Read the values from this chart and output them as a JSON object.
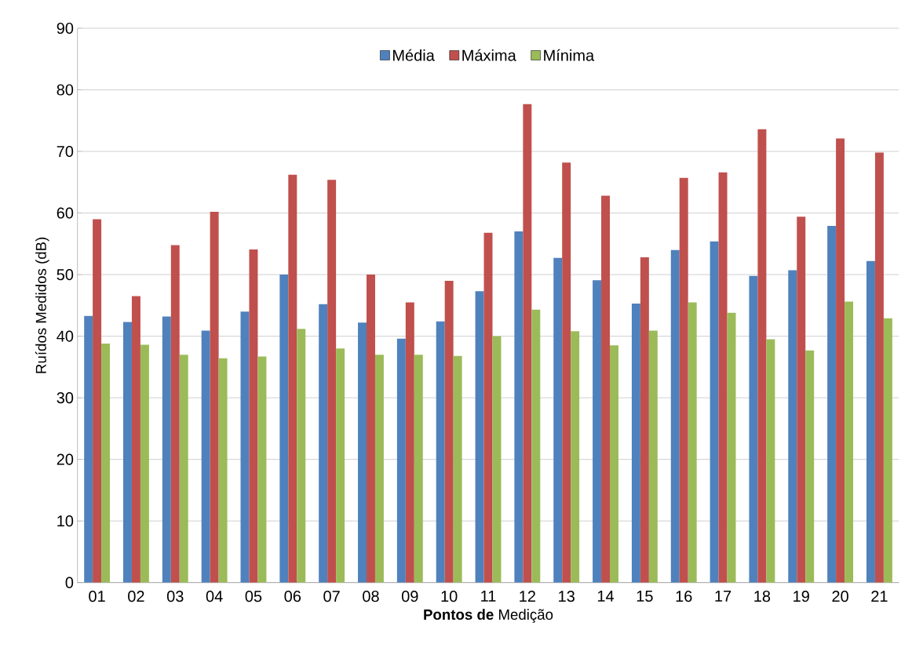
{
  "chart_data": {
    "type": "bar",
    "xlabel": "**Pontos de** Medição",
    "ylabel": "Ruídos Medidos (dB)",
    "categories": [
      "01",
      "02",
      "03",
      "04",
      "05",
      "06",
      "07",
      "08",
      "09",
      "10",
      "11",
      "12",
      "13",
      "14",
      "15",
      "16",
      "17",
      "18",
      "19",
      "20",
      "21"
    ],
    "series": [
      {
        "name": "Média",
        "color": "#4f81bd",
        "values": [
          43.3,
          42.3,
          43.2,
          40.9,
          44.0,
          50.0,
          45.2,
          42.2,
          39.6,
          42.4,
          47.3,
          57.0,
          52.7,
          49.1,
          45.3,
          54.0,
          55.4,
          49.8,
          50.7,
          57.9,
          52.2
        ]
      },
      {
        "name": "Máxima",
        "color": "#c0504d",
        "values": [
          59.0,
          46.5,
          54.8,
          60.2,
          54.1,
          66.2,
          65.4,
          50.0,
          45.5,
          49.0,
          56.8,
          77.7,
          68.2,
          62.8,
          52.8,
          65.7,
          66.6,
          73.6,
          59.4,
          72.1,
          69.8
        ]
      },
      {
        "name": "Mínima",
        "color": "#9bbb59",
        "values": [
          38.8,
          38.6,
          37.0,
          36.4,
          36.7,
          41.2,
          38.0,
          37.0,
          37.0,
          36.8,
          40.0,
          44.3,
          40.8,
          38.5,
          40.9,
          45.5,
          43.8,
          39.5,
          37.7,
          45.6,
          42.9
        ]
      }
    ],
    "ylim": [
      0,
      90
    ],
    "yticks": [
      0,
      10,
      20,
      30,
      40,
      50,
      60,
      70,
      80,
      90
    ],
    "grid": "y",
    "legend": "top"
  }
}
